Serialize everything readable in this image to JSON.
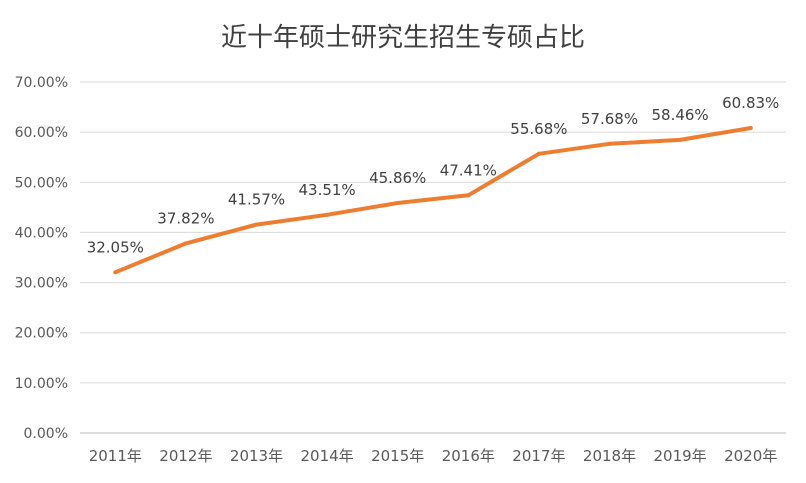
{
  "chart_data": {
    "type": "line",
    "title": "近十年硕士研究生招生专硕占比",
    "xlabel": "",
    "ylabel": "",
    "categories": [
      "2011年",
      "2012年",
      "2013年",
      "2014年",
      "2015年",
      "2016年",
      "2017年",
      "2018年",
      "2019年",
      "2020年"
    ],
    "series": [
      {
        "values": [
          32.05,
          37.82,
          41.57,
          43.51,
          45.86,
          47.41,
          55.68,
          57.68,
          58.46,
          60.83
        ],
        "data_labels": [
          "32.05%",
          "37.82%",
          "41.57%",
          "43.51%",
          "45.86%",
          "47.41%",
          "55.68%",
          "57.68%",
          "58.46%",
          "60.83%"
        ],
        "color": "#ed7d31"
      }
    ],
    "ylim": [
      0,
      70
    ],
    "yticks": [
      "0.00%",
      "10.00%",
      "20.00%",
      "30.00%",
      "40.00%",
      "50.00%",
      "60.00%",
      "70.00%"
    ],
    "grid": true,
    "legend": "none"
  }
}
